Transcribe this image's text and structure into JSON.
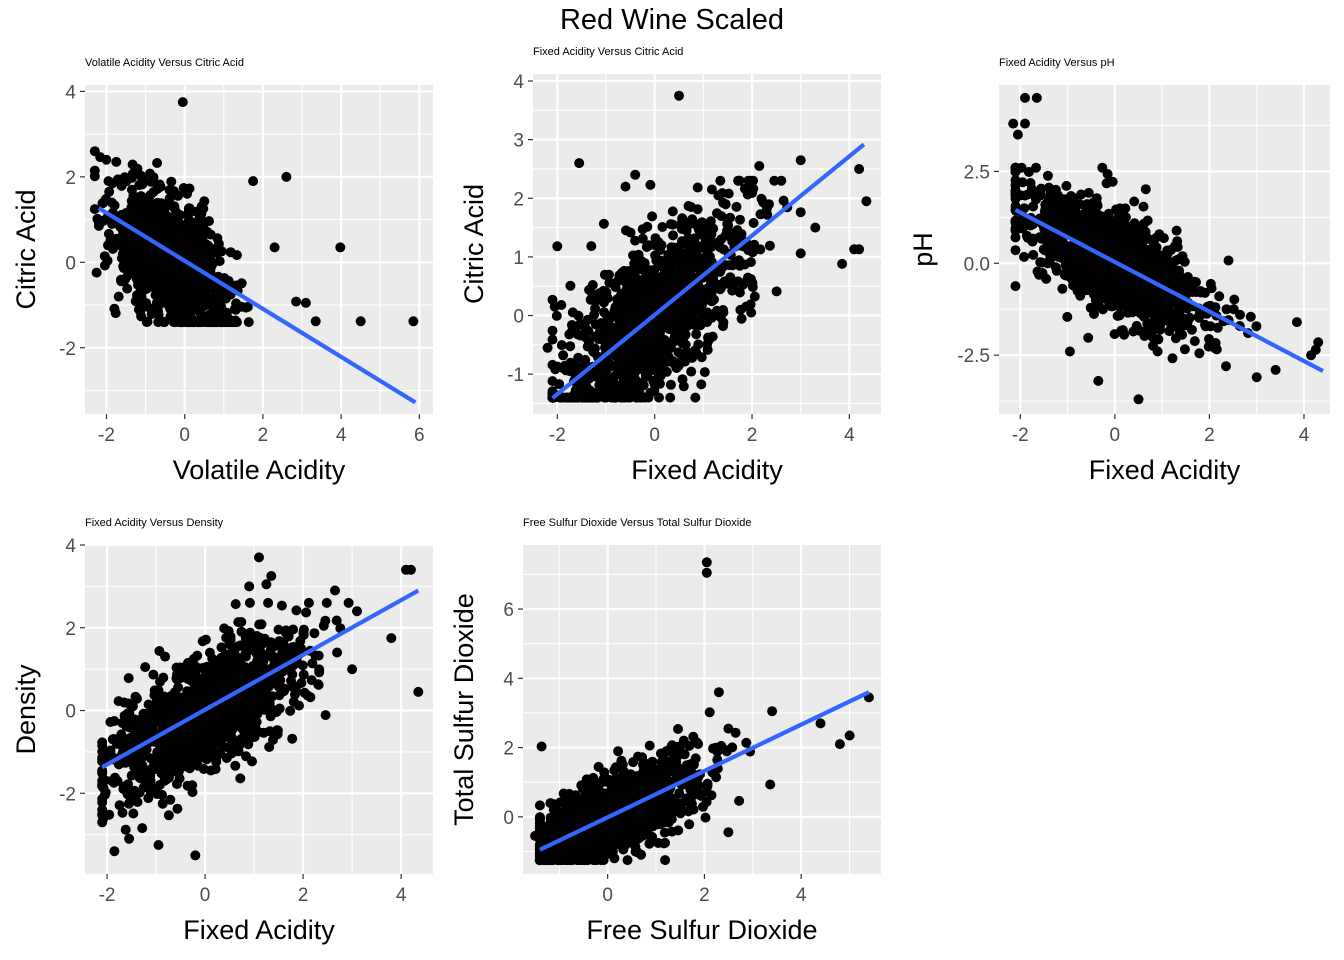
{
  "title": "Red Wine Scaled",
  "colors": {
    "panel_bg": "#EBEBEB",
    "grid": "#FFFFFF",
    "point": "#000000",
    "fit_line": "#3366FF",
    "tick_text": "#4D4D4D"
  },
  "chart_data": [
    {
      "type": "scatter",
      "title": "Volatile Acidity Versus Citric Acid",
      "xlabel": "Volatile Acidity",
      "ylabel": "Citric Acid",
      "xlim": [
        -2.55,
        6.35
      ],
      "ylim": [
        -3.55,
        4.15
      ],
      "xticks": [
        -2,
        0,
        2,
        4,
        6
      ],
      "xtick_labels": [
        "-2",
        "0",
        "2",
        "4",
        "6"
      ],
      "yticks": [
        -2,
        0,
        2,
        4
      ],
      "ytick_labels": [
        "-2",
        "0",
        "2",
        "4"
      ],
      "grid": true,
      "fit_line": {
        "x": [
          -2.2,
          5.9
        ],
        "y": [
          1.27,
          -3.28
        ]
      },
      "cluster": {
        "x_mean": -0.3,
        "y_mean": 0.0,
        "x_sd": 0.75,
        "y_sd": 0.9,
        "r": -0.55,
        "n": 1100,
        "xmin": -2.3,
        "xmax": 3.2,
        "ymin": -1.4,
        "ymax": 2.6
      },
      "points": [
        [
          -0.05,
          3.75
        ],
        [
          2.6,
          2.0
        ],
        [
          3.98,
          0.35
        ],
        [
          4.5,
          -1.38
        ],
        [
          5.85,
          -1.38
        ],
        [
          3.35,
          -1.38
        ],
        [
          -2.2,
          0.95
        ],
        [
          -1.95,
          1.9
        ],
        [
          2.85,
          -0.92
        ],
        [
          3.1,
          -0.95
        ],
        [
          1.75,
          1.9
        ],
        [
          2.3,
          0.35
        ]
      ]
    },
    {
      "type": "scatter",
      "title": "Fixed Acidity Versus Citric Acid",
      "xlabel": "Fixed Acidity",
      "ylabel": "Citric Acid",
      "xlim": [
        -2.5,
        4.65
      ],
      "ylim": [
        -1.68,
        4.12
      ],
      "xticks": [
        -2,
        0,
        2,
        4
      ],
      "xtick_labels": [
        "-2",
        "0",
        "2",
        "4"
      ],
      "yticks": [
        -1,
        0,
        1,
        2,
        3,
        4
      ],
      "ytick_labels": [
        "-1",
        "0",
        "1",
        "2",
        "3",
        "4"
      ],
      "grid": true,
      "fit_line": {
        "x": [
          -2.1,
          4.3
        ],
        "y": [
          -1.41,
          2.92
        ]
      },
      "cluster": {
        "x_mean": 0.0,
        "y_mean": 0.0,
        "x_sd": 1.0,
        "y_sd": 0.95,
        "r": 0.67,
        "n": 1100,
        "xmin": -2.1,
        "xmax": 3.0,
        "ymin": -1.4,
        "ymax": 2.3
      },
      "points": [
        [
          0.5,
          3.75
        ],
        [
          -1.55,
          2.6
        ],
        [
          4.35,
          1.95
        ],
        [
          4.1,
          1.13
        ],
        [
          4.2,
          1.13
        ],
        [
          3.85,
          0.88
        ],
        [
          4.2,
          2.5
        ],
        [
          -2.2,
          -0.55
        ],
        [
          -2.0,
          1.18
        ],
        [
          -0.4,
          2.4
        ],
        [
          3.0,
          2.65
        ],
        [
          2.15,
          2.55
        ],
        [
          3.3,
          1.5
        ],
        [
          -0.6,
          2.2
        ]
      ]
    },
    {
      "type": "scatter",
      "title": "Fixed Acidity Versus pH",
      "xlabel": "Fixed Acidity",
      "ylabel": "pH",
      "xlim": [
        -2.45,
        4.55
      ],
      "ylim": [
        -4.1,
        4.85
      ],
      "xticks": [
        -2,
        0,
        2,
        4
      ],
      "xtick_labels": [
        "-2",
        "0",
        "2",
        "4"
      ],
      "yticks": [
        -2.5,
        0.0,
        2.5
      ],
      "ytick_labels": [
        "-2.5",
        "0.0",
        "2.5"
      ],
      "grid": true,
      "fit_line": {
        "x": [
          -2.1,
          4.4
        ],
        "y": [
          1.45,
          -2.93
        ]
      },
      "cluster": {
        "x_mean": 0.0,
        "y_mean": 0.0,
        "x_sd": 1.0,
        "y_sd": 1.0,
        "r": -0.68,
        "n": 1100,
        "xmin": -2.1,
        "xmax": 3.0,
        "ymin": -3.1,
        "ymax": 2.6
      },
      "points": [
        [
          -1.9,
          4.5
        ],
        [
          -1.65,
          4.5
        ],
        [
          -2.15,
          3.8
        ],
        [
          -1.9,
          3.8
        ],
        [
          -2.05,
          3.5
        ],
        [
          0.5,
          -3.7
        ],
        [
          3.4,
          -2.9
        ],
        [
          4.3,
          -2.15
        ],
        [
          4.15,
          -2.5
        ],
        [
          4.25,
          -2.35
        ],
        [
          3.85,
          -1.6
        ],
        [
          -0.35,
          -3.2
        ],
        [
          2.35,
          -2.8
        ],
        [
          -0.95,
          -2.4
        ]
      ]
    },
    {
      "type": "scatter",
      "title": "Fixed Acidity Versus Density",
      "xlabel": "Fixed Acidity",
      "ylabel": "Density",
      "xlim": [
        -2.45,
        4.65
      ],
      "ylim": [
        -3.95,
        4.0
      ],
      "xticks": [
        -2,
        0,
        2,
        4
      ],
      "xtick_labels": [
        "-2",
        "0",
        "2",
        "4"
      ],
      "yticks": [
        -2,
        0,
        2,
        4
      ],
      "ytick_labels": [
        "-2",
        "0",
        "2",
        "4"
      ],
      "grid": true,
      "fit_line": {
        "x": [
          -2.1,
          4.35
        ],
        "y": [
          -1.37,
          2.9
        ]
      },
      "cluster": {
        "x_mean": 0.0,
        "y_mean": 0.0,
        "x_sd": 1.0,
        "y_sd": 1.0,
        "r": 0.67,
        "n": 1100,
        "xmin": -2.1,
        "xmax": 3.3,
        "ymin": -3.2,
        "ymax": 2.6
      },
      "points": [
        [
          1.1,
          3.7
        ],
        [
          1.35,
          3.25
        ],
        [
          1.25,
          3.05
        ],
        [
          0.9,
          3.0
        ],
        [
          4.1,
          3.4
        ],
        [
          4.2,
          3.4
        ],
        [
          3.8,
          1.75
        ],
        [
          4.35,
          0.45
        ],
        [
          -0.2,
          -3.5
        ],
        [
          -1.85,
          -3.4
        ],
        [
          -0.95,
          -3.25
        ],
        [
          -1.55,
          -3.1
        ],
        [
          2.65,
          2.9
        ],
        [
          3.1,
          2.4
        ],
        [
          3.0,
          1.0
        ]
      ]
    },
    {
      "type": "scatter",
      "title": "Free Sulfur Dioxide Versus Total Sulfur Dioxide",
      "xlabel": "Free Sulfur Dioxide",
      "ylabel": "Total Sulfur Dioxide",
      "xlim": [
        -1.75,
        5.65
      ],
      "ylim": [
        -1.65,
        7.85
      ],
      "xticks": [
        0,
        2,
        4
      ],
      "xtick_labels": [
        "0",
        "2",
        "4"
      ],
      "yticks": [
        0,
        2,
        4,
        6
      ],
      "ytick_labels": [
        "0",
        "2",
        "4",
        "6"
      ],
      "grid": true,
      "fit_line": {
        "x": [
          -1.4,
          5.4
        ],
        "y": [
          -0.95,
          3.6
        ]
      },
      "cluster": {
        "x_mean": 0.0,
        "y_mean": 0.0,
        "x_sd": 1.0,
        "y_sd": 0.85,
        "r": 0.67,
        "n": 1100,
        "xmin": -1.4,
        "xmax": 3.9,
        "ymin": -1.25,
        "ymax": 3.3
      },
      "points": [
        [
          2.05,
          7.35
        ],
        [
          2.05,
          7.05
        ],
        [
          5.4,
          3.45
        ],
        [
          5.0,
          2.35
        ],
        [
          4.8,
          2.1
        ],
        [
          4.4,
          2.7
        ],
        [
          3.4,
          3.05
        ],
        [
          2.3,
          3.6
        ],
        [
          -1.5,
          -0.55
        ],
        [
          -1.4,
          -0.05
        ]
      ]
    }
  ]
}
